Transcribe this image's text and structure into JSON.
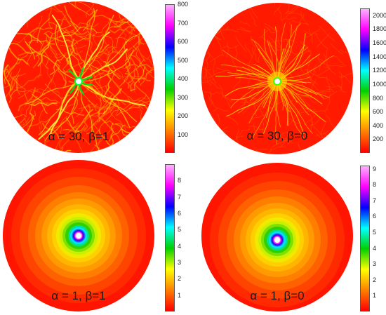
{
  "figure": {
    "panels": [
      {
        "id": "tl",
        "caption": "α = 30, β=1",
        "colorbar": {
          "min": 0,
          "max": 800,
          "ticks": [
            800,
            700,
            600,
            500,
            400,
            300,
            200,
            100
          ]
        },
        "pattern": "fractured-branches"
      },
      {
        "id": "tr",
        "caption": "α = 30, β=0",
        "colorbar": {
          "min": 0,
          "max": 2100,
          "ticks": [
            2000,
            1800,
            1600,
            1400,
            1200,
            1000,
            800,
            600,
            400,
            200
          ]
        },
        "pattern": "fine-radial-fractures"
      },
      {
        "id": "bl",
        "caption": "α = 1, β=1",
        "colorbar": {
          "min": 0,
          "max": 9,
          "ticks": [
            8,
            7,
            6,
            5,
            4,
            3,
            2,
            1
          ]
        },
        "pattern": "concentric-rings"
      },
      {
        "id": "br",
        "caption": "α = 1, β=0",
        "colorbar": {
          "min": 0,
          "max": 9.2,
          "ticks": [
            9,
            8,
            7,
            6,
            5,
            4,
            3,
            2,
            1
          ]
        },
        "pattern": "concentric-rings"
      }
    ],
    "colormap": [
      "#ff0000",
      "#ff8000",
      "#ffff00",
      "#00d000",
      "#00ffff",
      "#0000ff",
      "#ff00ff",
      "#ffb0ff"
    ]
  }
}
